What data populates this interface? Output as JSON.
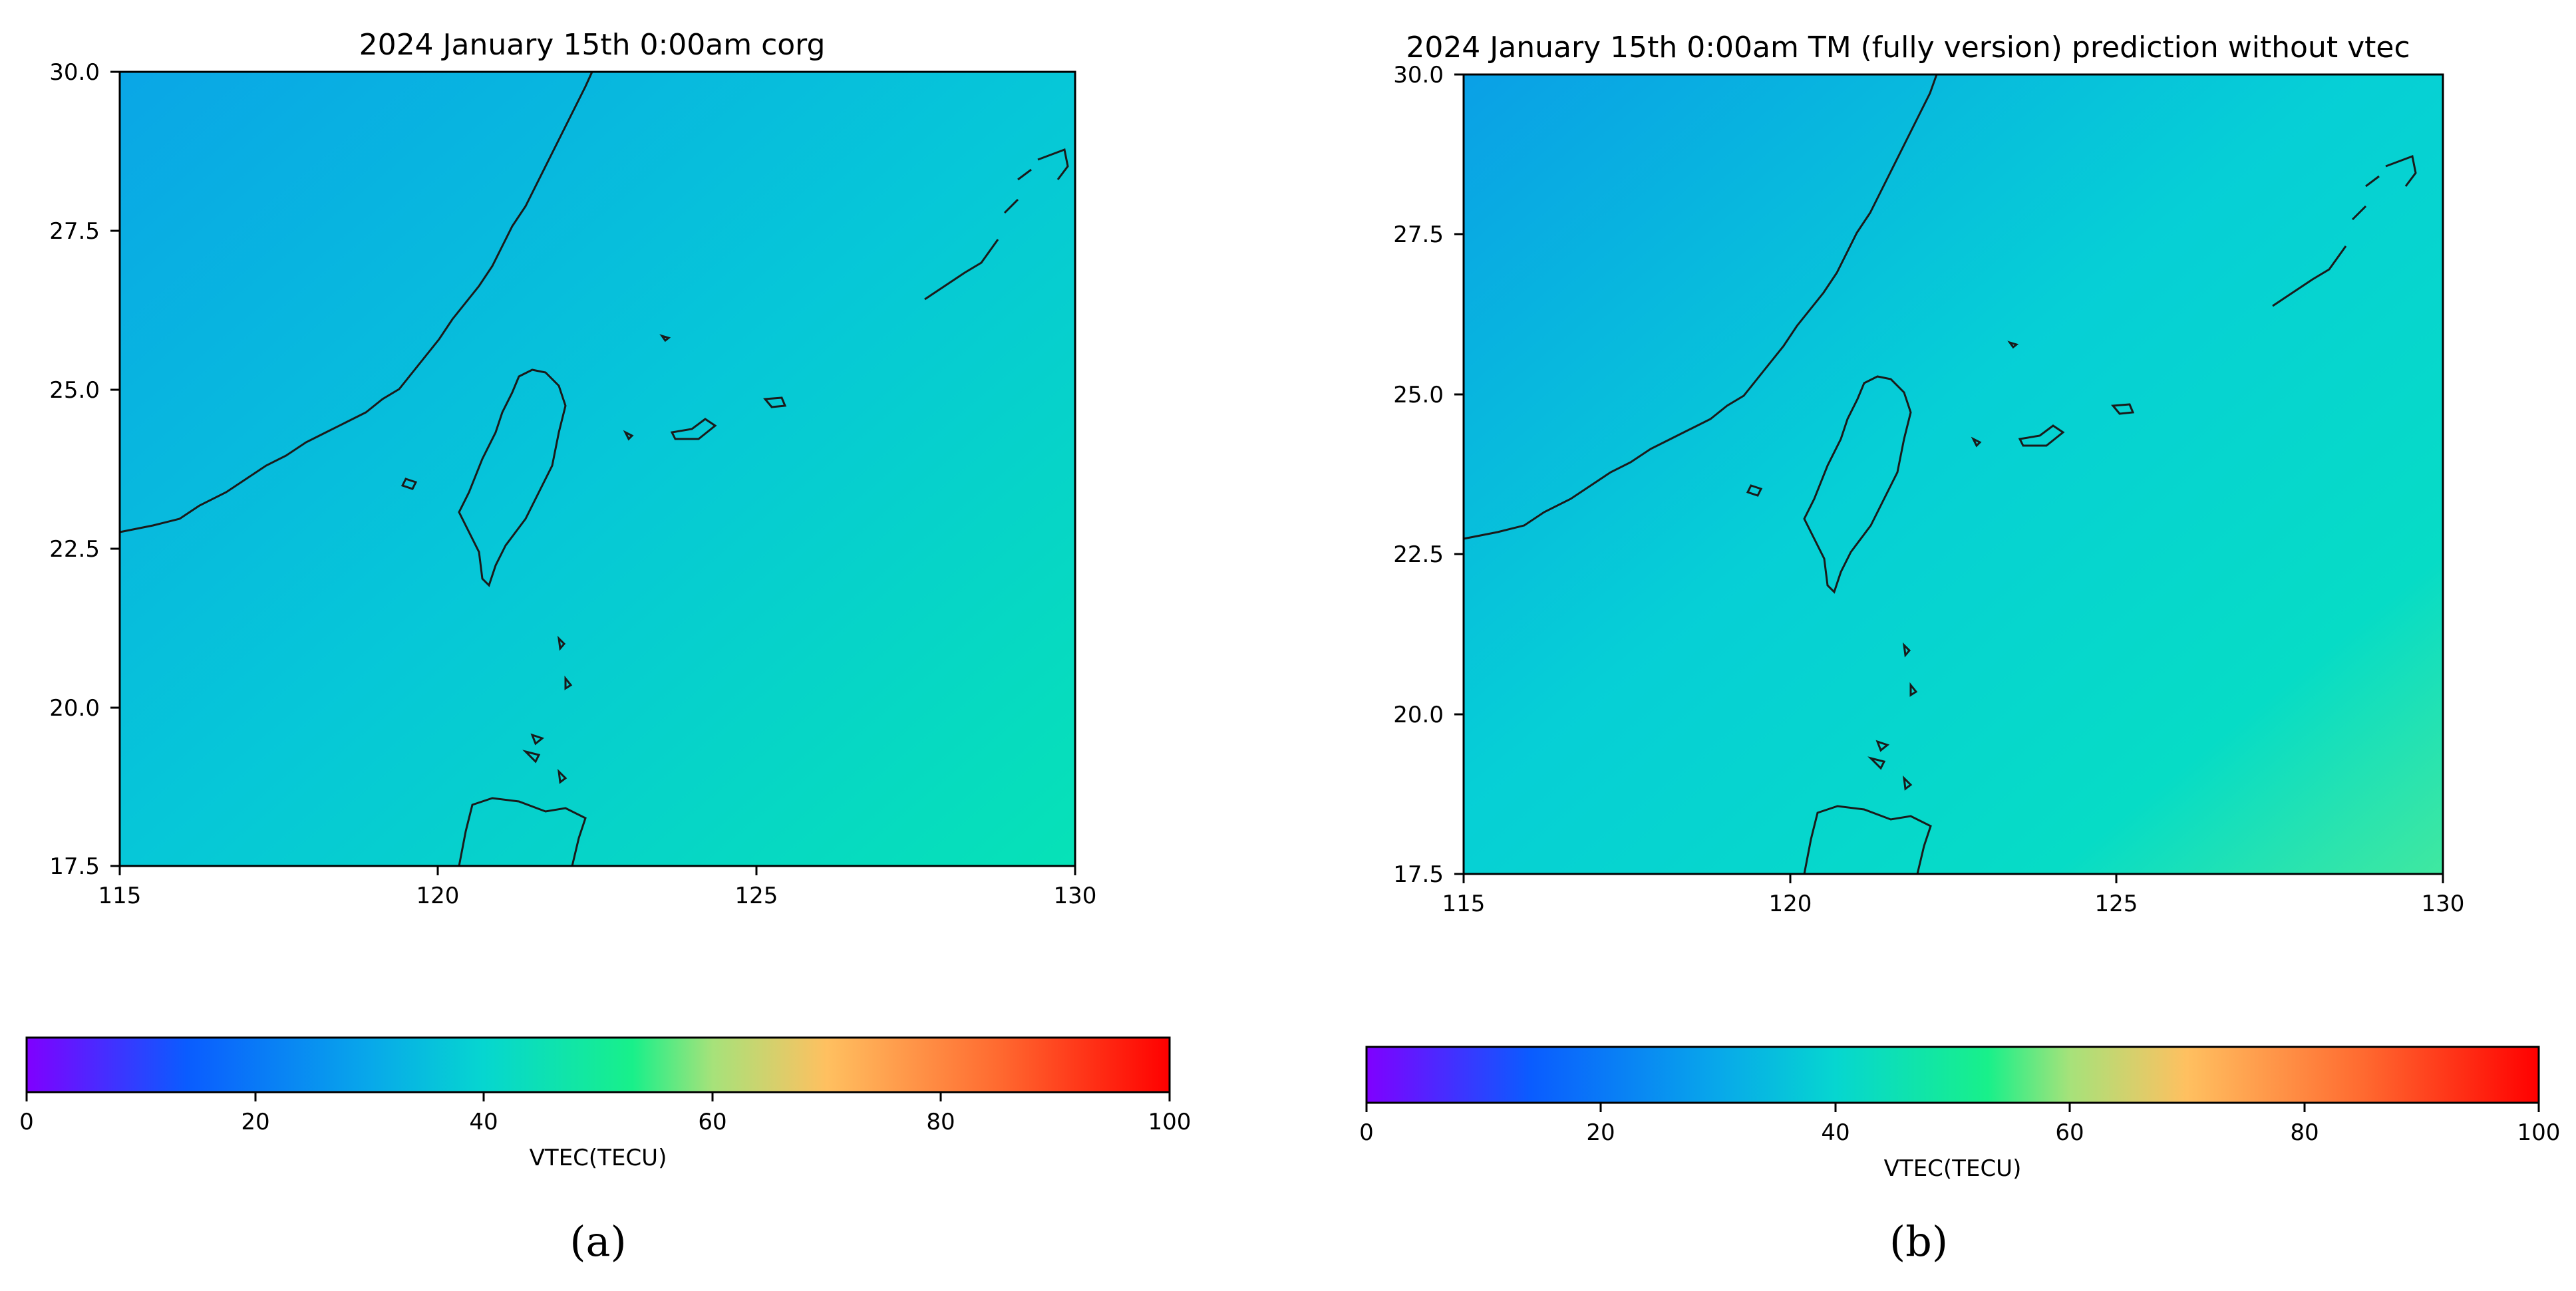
{
  "panels": [
    {
      "id": "a",
      "title": "2024 January 15th 0:00am corg",
      "caption": "(a)",
      "map": {
        "lon_range": [
          115,
          130
        ],
        "lat_range": [
          17.5,
          30.0
        ],
        "x_ticks": [
          "115",
          "120",
          "125",
          "130"
        ],
        "y_ticks": [
          "30.0",
          "27.5",
          "25.0",
          "22.5",
          "20.0",
          "17.5"
        ],
        "field": {
          "colors": {
            "nw": "#0aa6e6",
            "ne": "#06c7d8",
            "sw": "#06d2d3",
            "se": "#06e2b7"
          }
        }
      },
      "colorbar": {
        "label": "VTEC(TECU)",
        "ticks": [
          "0",
          "20",
          "40",
          "60",
          "80",
          "100"
        ],
        "range": [
          0,
          100
        ]
      }
    },
    {
      "id": "b",
      "title": "2024 January 15th 0:00am TM (fully version) prediction without vtec",
      "caption": "(b)",
      "map": {
        "lon_range": [
          115,
          130
        ],
        "lat_range": [
          17.5,
          30.0
        ],
        "x_ticks": [
          "115",
          "120",
          "125",
          "130"
        ],
        "y_ticks": [
          "30.0",
          "27.5",
          "25.0",
          "22.5",
          "20.0",
          "17.5"
        ],
        "field": {
          "colors": {
            "nw": "#0aa0e6",
            "ne": "#06cfd6",
            "sw": "#06dcc6",
            "se": "#40e8a0"
          }
        }
      },
      "colorbar": {
        "label": "VTEC(TECU)",
        "ticks": [
          "0",
          "20",
          "40",
          "60",
          "80",
          "100"
        ],
        "range": [
          0,
          100
        ]
      }
    }
  ]
}
